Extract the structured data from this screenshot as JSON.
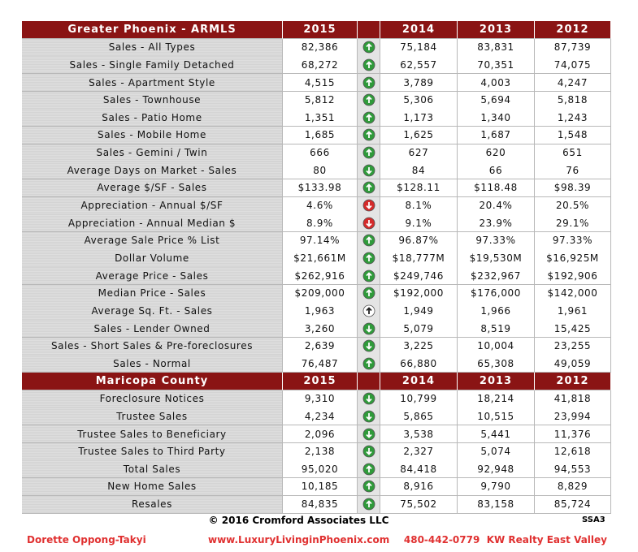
{
  "sections": [
    {
      "title": "Greater Phoenix - ARMLS",
      "columns": [
        "2015",
        "2014",
        "2013",
        "2012"
      ],
      "rows": [
        {
          "label": "Sales - All Types",
          "values": [
            "82,386",
            "75,184",
            "83,831",
            "87,739"
          ],
          "arrow": {
            "direction": "up",
            "color": "#2f9a3a"
          }
        },
        {
          "label": "Sales - Single Family Detached",
          "values": [
            "68,272",
            "62,557",
            "70,351",
            "74,075"
          ],
          "arrow": {
            "direction": "up",
            "color": "#2f9a3a"
          }
        },
        {
          "label": "Sales - Apartment Style",
          "values": [
            "4,515",
            "3,789",
            "4,003",
            "4,247"
          ],
          "arrow": {
            "direction": "up",
            "color": "#2f9a3a"
          }
        },
        {
          "label": "Sales - Townhouse",
          "values": [
            "5,812",
            "5,306",
            "5,694",
            "5,818"
          ],
          "arrow": {
            "direction": "up",
            "color": "#2f9a3a"
          }
        },
        {
          "label": "Sales - Patio Home",
          "values": [
            "1,351",
            "1,173",
            "1,340",
            "1,243"
          ],
          "arrow": {
            "direction": "up",
            "color": "#2f9a3a"
          }
        },
        {
          "label": "Sales - Mobile Home",
          "values": [
            "1,685",
            "1,625",
            "1,687",
            "1,548"
          ],
          "arrow": {
            "direction": "up",
            "color": "#2f9a3a"
          }
        },
        {
          "label": "Sales - Gemini / Twin",
          "values": [
            "666",
            "627",
            "620",
            "651"
          ],
          "arrow": {
            "direction": "up",
            "color": "#2f9a3a"
          }
        },
        {
          "label": "Average Days on Market - Sales",
          "values": [
            "80",
            "84",
            "66",
            "76"
          ],
          "arrow": {
            "direction": "down",
            "color": "#2f9a3a"
          }
        },
        {
          "label": "Average $/SF - Sales",
          "values": [
            "$133.98",
            "$128.11",
            "$118.48",
            "$98.39"
          ],
          "arrow": {
            "direction": "up",
            "color": "#2f9a3a"
          }
        },
        {
          "label": "Appreciation - Annual $/SF",
          "values": [
            "4.6%",
            "8.1%",
            "20.4%",
            "20.5%"
          ],
          "arrow": {
            "direction": "down",
            "color": "#d42a2a"
          }
        },
        {
          "label": "Appreciation - Annual Median $",
          "values": [
            "8.9%",
            "9.1%",
            "23.9%",
            "29.1%"
          ],
          "arrow": {
            "direction": "down",
            "color": "#d42a2a"
          }
        },
        {
          "label": "Average Sale Price % List",
          "values": [
            "97.14%",
            "96.87%",
            "97.33%",
            "97.33%"
          ],
          "arrow": {
            "direction": "up",
            "color": "#2f9a3a"
          }
        },
        {
          "label": "Dollar Volume",
          "values": [
            "$21,661M",
            "$18,777M",
            "$19,530M",
            "$16,925M"
          ],
          "arrow": {
            "direction": "up",
            "color": "#2f9a3a"
          }
        },
        {
          "label": "Average Price - Sales",
          "values": [
            "$262,916",
            "$249,746",
            "$232,967",
            "$192,906"
          ],
          "arrow": {
            "direction": "up",
            "color": "#2f9a3a"
          }
        },
        {
          "label": "Median Price - Sales",
          "values": [
            "$209,000",
            "$192,000",
            "$176,000",
            "$142,000"
          ],
          "arrow": {
            "direction": "up",
            "color": "#2f9a3a"
          }
        },
        {
          "label": "Average Sq. Ft. - Sales",
          "values": [
            "1,963",
            "1,949",
            "1,966",
            "1,961"
          ],
          "arrow": {
            "direction": "up",
            "color": "#ffffff"
          }
        },
        {
          "label": "Sales - Lender Owned",
          "values": [
            "3,260",
            "5,079",
            "8,519",
            "15,425"
          ],
          "arrow": {
            "direction": "down",
            "color": "#2f9a3a"
          }
        },
        {
          "label": "Sales - Short Sales & Pre-foreclosures",
          "values": [
            "2,639",
            "3,225",
            "10,004",
            "23,255"
          ],
          "arrow": {
            "direction": "down",
            "color": "#2f9a3a"
          }
        },
        {
          "label": "Sales - Normal",
          "values": [
            "76,487",
            "66,880",
            "65,308",
            "49,059"
          ],
          "arrow": {
            "direction": "up",
            "color": "#2f9a3a"
          }
        }
      ]
    },
    {
      "title": "Maricopa County",
      "columns": [
        "2015",
        "2014",
        "2013",
        "2012"
      ],
      "rows": [
        {
          "label": "Foreclosure Notices",
          "values": [
            "9,310",
            "10,799",
            "18,214",
            "41,818"
          ],
          "arrow": {
            "direction": "down",
            "color": "#2f9a3a"
          }
        },
        {
          "label": "Trustee Sales",
          "values": [
            "4,234",
            "5,865",
            "10,515",
            "23,994"
          ],
          "arrow": {
            "direction": "down",
            "color": "#2f9a3a"
          }
        },
        {
          "label": "Trustee Sales to Beneficiary",
          "values": [
            "2,096",
            "3,538",
            "5,441",
            "11,376"
          ],
          "arrow": {
            "direction": "down",
            "color": "#2f9a3a"
          }
        },
        {
          "label": "Trustee Sales to Third Party",
          "values": [
            "2,138",
            "2,327",
            "5,074",
            "12,618"
          ],
          "arrow": {
            "direction": "down",
            "color": "#2f9a3a"
          }
        },
        {
          "label": "Total Sales",
          "values": [
            "95,020",
            "84,418",
            "92,948",
            "94,553"
          ],
          "arrow": {
            "direction": "up",
            "color": "#2f9a3a"
          }
        },
        {
          "label": "New Home Sales",
          "values": [
            "10,185",
            "8,916",
            "9,790",
            "8,829"
          ],
          "arrow": {
            "direction": "up",
            "color": "#2f9a3a"
          }
        },
        {
          "label": "Resales",
          "values": [
            "84,835",
            "75,502",
            "83,158",
            "85,724"
          ],
          "arrow": {
            "direction": "up",
            "color": "#2f9a3a"
          }
        }
      ]
    }
  ],
  "footer": {
    "copyright": "© 2016 Cromford Associates LLC",
    "code": "SSA3",
    "name": "Dorette Oppong-Takyi",
    "website": "www.LuxuryLivinginPhoenix.com",
    "contact": "480-442-0779  KW Realty East Valley"
  }
}
